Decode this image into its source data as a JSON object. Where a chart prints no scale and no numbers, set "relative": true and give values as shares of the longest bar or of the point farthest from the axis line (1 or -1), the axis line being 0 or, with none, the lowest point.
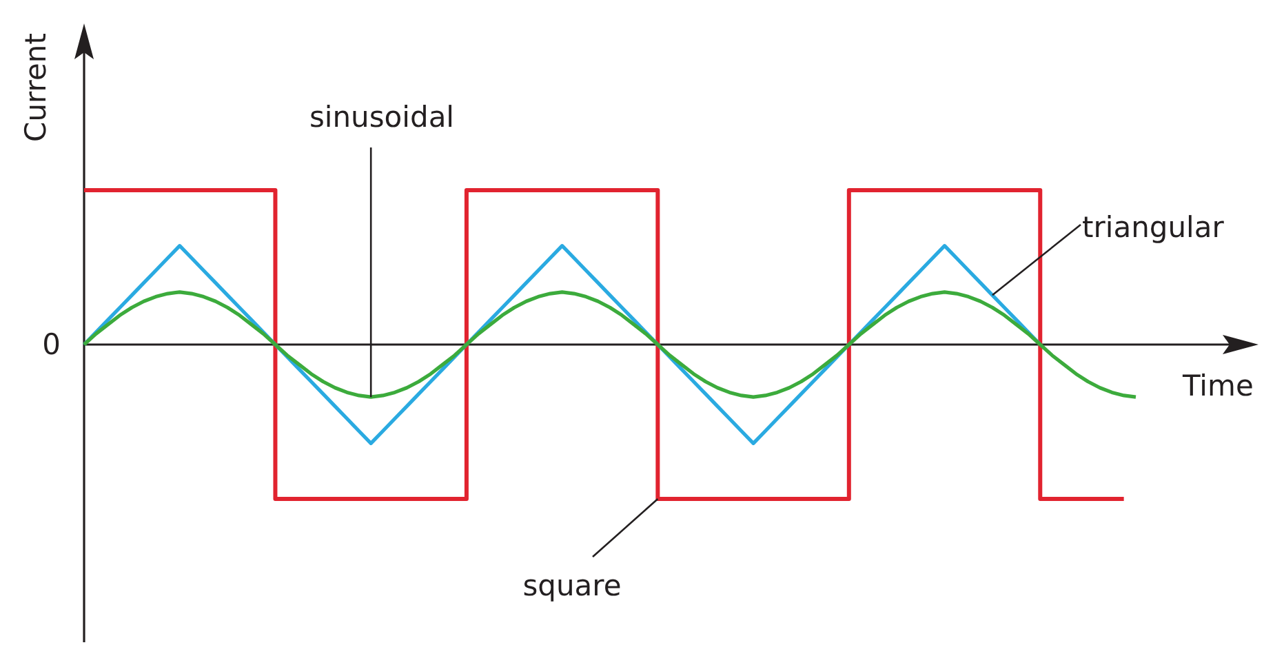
{
  "chart_data": {
    "type": "line",
    "relative": true,
    "xlabel": "Time",
    "ylabel": "Current",
    "annotations": [
      "0"
    ],
    "categories": [
      null,
      null,
      null,
      null,
      null,
      null,
      null,
      null,
      null,
      null,
      null,
      null,
      null,
      null,
      null,
      null,
      null,
      null,
      null,
      null,
      null,
      null,
      null,
      null,
      null,
      null,
      null,
      null,
      null,
      null,
      null,
      null,
      null,
      null,
      null,
      null,
      null,
      null,
      null,
      null,
      null,
      null,
      null,
      null,
      null,
      null,
      null,
      null,
      null,
      null,
      null,
      null,
      null,
      null,
      null,
      null,
      null,
      null,
      null,
      null,
      null,
      null,
      null,
      null,
      null,
      null,
      null,
      null,
      null,
      null,
      null,
      null,
      null,
      null,
      null,
      null,
      null,
      null,
      null,
      null,
      null,
      null,
      null,
      null,
      null,
      null,
      null,
      null,
      null
    ],
    "series": [
      {
        "name": "square",
        "type": "step",
        "color": "#e1232f",
        "values": [
          1,
          1,
          1,
          1,
          1,
          1,
          1,
          1,
          1,
          1,
          1,
          1,
          1,
          1,
          1,
          1,
          -1,
          -1,
          -1,
          -1,
          -1,
          -1,
          -1,
          -1,
          -1,
          -1,
          -1,
          -1,
          -1,
          -1,
          -1,
          -1,
          1,
          1,
          1,
          1,
          1,
          1,
          1,
          1,
          1,
          1,
          1,
          1,
          1,
          1,
          1,
          1,
          -1,
          -1,
          -1,
          -1,
          -1,
          -1,
          -1,
          -1,
          -1,
          -1,
          -1,
          -1,
          -1,
          -1,
          -1,
          -1,
          1,
          1,
          1,
          1,
          1,
          1,
          1,
          1,
          1,
          1,
          1,
          1,
          1,
          1,
          1,
          1,
          -1,
          -1,
          -1,
          -1,
          -1,
          -1,
          -1,
          -1,
          null
        ]
      },
      {
        "name": "triangular",
        "color": "#2aaae1",
        "values": [
          0,
          0.08,
          0.16,
          0.24,
          0.32,
          0.4,
          0.48,
          0.56,
          0.64,
          0.56,
          0.48,
          0.4,
          0.32,
          0.24,
          0.16,
          0.08,
          0,
          -0.08,
          -0.16,
          -0.24,
          -0.32,
          -0.4,
          -0.48,
          -0.56,
          -0.64,
          -0.56,
          -0.48,
          -0.4,
          -0.32,
          -0.24,
          -0.16,
          -0.08,
          0,
          0.08,
          0.16,
          0.24,
          0.32,
          0.4,
          0.48,
          0.56,
          0.64,
          0.56,
          0.48,
          0.4,
          0.32,
          0.24,
          0.16,
          0.08,
          0,
          -0.08,
          -0.16,
          -0.24,
          -0.32,
          -0.4,
          -0.48,
          -0.56,
          -0.64,
          -0.56,
          -0.48,
          -0.4,
          -0.32,
          -0.24,
          -0.16,
          -0.08,
          0,
          0.08,
          0.16,
          0.24,
          0.32,
          0.4,
          0.48,
          0.56,
          0.64,
          0.56,
          0.48,
          0.4,
          0.32,
          0.24,
          0.16,
          0.08,
          0,
          null,
          null,
          null,
          null,
          null,
          null,
          null,
          null
        ]
      },
      {
        "name": "sinusoidal",
        "color": "#3cab3c",
        "values": [
          0,
          0.07,
          0.13,
          0.19,
          0.24,
          0.28,
          0.31,
          0.33,
          0.34,
          0.33,
          0.31,
          0.28,
          0.24,
          0.19,
          0.13,
          0.07,
          0,
          -0.07,
          -0.13,
          -0.19,
          -0.24,
          -0.28,
          -0.31,
          -0.33,
          -0.34,
          -0.33,
          -0.31,
          -0.28,
          -0.24,
          -0.19,
          -0.13,
          -0.07,
          0,
          0.07,
          0.13,
          0.19,
          0.24,
          0.28,
          0.31,
          0.33,
          0.34,
          0.33,
          0.31,
          0.28,
          0.24,
          0.19,
          0.13,
          0.07,
          0,
          -0.07,
          -0.13,
          -0.19,
          -0.24,
          -0.28,
          -0.31,
          -0.33,
          -0.34,
          -0.33,
          -0.31,
          -0.28,
          -0.24,
          -0.19,
          -0.13,
          -0.07,
          0,
          0.07,
          0.13,
          0.19,
          0.24,
          0.28,
          0.31,
          0.33,
          0.34,
          0.33,
          0.31,
          0.28,
          0.24,
          0.19,
          0.13,
          0.07,
          0,
          -0.07,
          -0.13,
          -0.19,
          -0.24,
          -0.28,
          -0.31,
          -0.33,
          -0.34
        ]
      }
    ]
  }
}
